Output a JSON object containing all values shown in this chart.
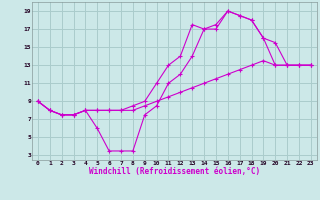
{
  "background_color": "#cce8e8",
  "grid_color": "#aacccc",
  "line_color": "#cc00cc",
  "xlabel": "Windchill (Refroidissement éolien,°C)",
  "xlim": [
    -0.5,
    23.5
  ],
  "ylim": [
    2.5,
    20
  ],
  "yticks": [
    3,
    5,
    7,
    9,
    11,
    13,
    15,
    17,
    19
  ],
  "xticks": [
    0,
    1,
    2,
    3,
    4,
    5,
    6,
    7,
    8,
    9,
    10,
    11,
    12,
    13,
    14,
    15,
    16,
    17,
    18,
    19,
    20,
    21,
    22,
    23
  ],
  "series": [
    {
      "x": [
        0,
        1,
        2,
        3,
        4,
        5,
        6,
        7,
        8,
        9,
        10,
        11,
        12,
        13,
        14,
        15,
        16,
        17,
        18,
        19,
        20,
        21,
        22,
        23
      ],
      "y": [
        9,
        8,
        7.5,
        7.5,
        8,
        6,
        3.5,
        3.5,
        3.5,
        7.5,
        8.5,
        11,
        12,
        14,
        17,
        17,
        19,
        18.5,
        18,
        16,
        13,
        13,
        13,
        13
      ]
    },
    {
      "x": [
        0,
        1,
        2,
        3,
        4,
        5,
        6,
        7,
        8,
        9,
        10,
        11,
        12,
        13,
        14,
        15,
        16,
        17,
        18,
        19,
        20,
        21,
        22,
        23
      ],
      "y": [
        9,
        8,
        7.5,
        7.5,
        8,
        8,
        8,
        8,
        8,
        8.5,
        9,
        9.5,
        10,
        10.5,
        11,
        11.5,
        12,
        12.5,
        13,
        13.5,
        13,
        13,
        13,
        13
      ]
    },
    {
      "x": [
        0,
        1,
        2,
        3,
        4,
        5,
        6,
        7,
        8,
        9,
        10,
        11,
        12,
        13,
        14,
        15,
        16,
        17,
        18,
        19,
        20,
        21,
        22,
        23
      ],
      "y": [
        9,
        8,
        7.5,
        7.5,
        8,
        8,
        8,
        8,
        8.5,
        9,
        11,
        13,
        14,
        17.5,
        17,
        17.5,
        19,
        18.5,
        18,
        16,
        15.5,
        13,
        13,
        13
      ]
    }
  ]
}
